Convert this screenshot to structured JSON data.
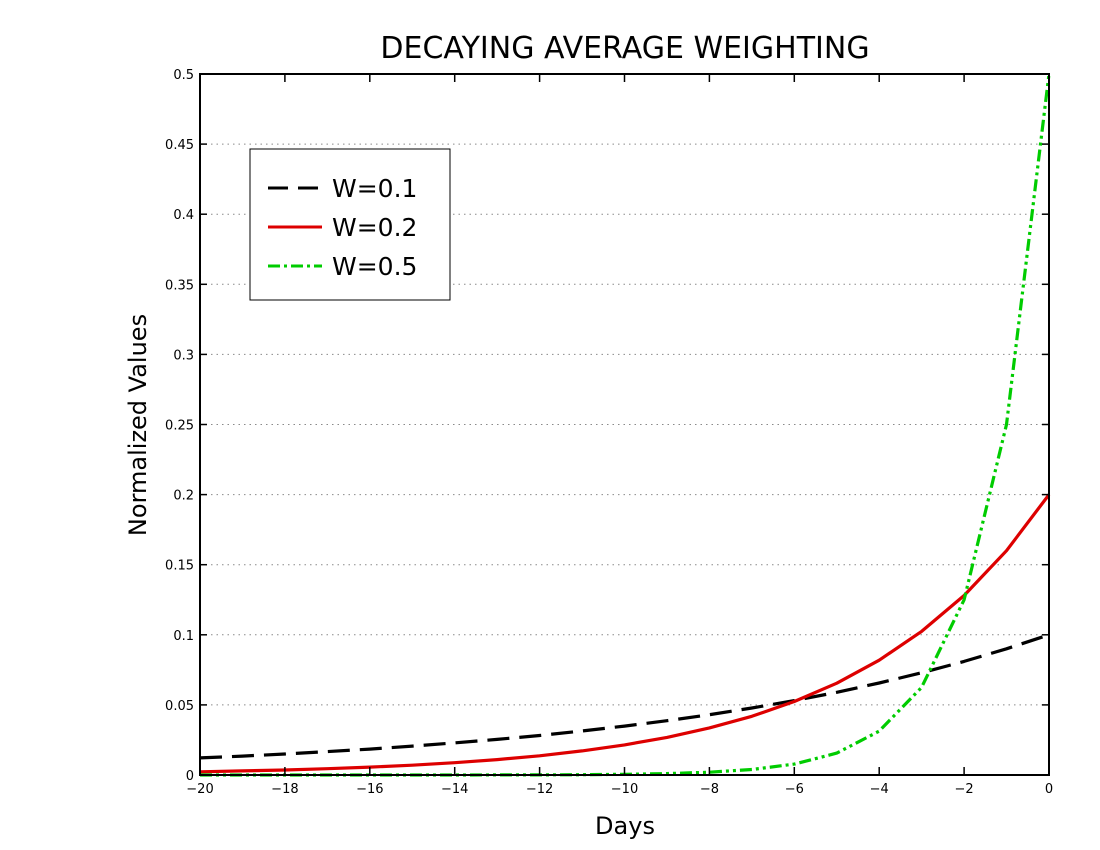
{
  "chart_data": {
    "type": "line",
    "title": "DECAYING AVERAGE WEIGHTING",
    "xlabel": "Days",
    "ylabel": "Normalized Values",
    "xlim": [
      -20,
      0
    ],
    "ylim": [
      0,
      0.5
    ],
    "x_ticks": [
      -20,
      -18,
      -16,
      -14,
      -12,
      -10,
      -8,
      -6,
      -4,
      -2,
      0
    ],
    "x_tick_labels": [
      "−20",
      "−18",
      "−16",
      "−14",
      "−12",
      "−10",
      "−8",
      "−6",
      "−4",
      "−2",
      "0"
    ],
    "y_ticks": [
      0,
      0.05,
      0.1,
      0.15,
      0.2,
      0.25,
      0.3,
      0.35,
      0.4,
      0.45,
      0.5
    ],
    "y_tick_labels": [
      "0",
      "0.05",
      "0.1",
      "0.15",
      "0.2",
      "0.25",
      "0.3",
      "0.35",
      "0.4",
      "0.45",
      "0.5"
    ],
    "grid": "horizontal-dotted",
    "legend_position": "top-left",
    "x": [
      -20,
      -19,
      -18,
      -17,
      -16,
      -15,
      -14,
      -13,
      -12,
      -11,
      -10,
      -9,
      -8,
      -7,
      -6,
      -5,
      -4,
      -3,
      -2,
      -1,
      0
    ],
    "series": [
      {
        "name": "W=0.1",
        "color": "#000000",
        "style": "dashed",
        "values": [
          0.0122,
          0.0135,
          0.015,
          0.0167,
          0.0185,
          0.0206,
          0.0229,
          0.0254,
          0.0282,
          0.0314,
          0.0349,
          0.0387,
          0.043,
          0.0478,
          0.0531,
          0.059,
          0.0656,
          0.0729,
          0.081,
          0.09,
          0.1
        ]
      },
      {
        "name": "W=0.2",
        "color": "#dd0000",
        "style": "solid",
        "values": [
          0.0023,
          0.0029,
          0.0036,
          0.0045,
          0.0056,
          0.007,
          0.0088,
          0.011,
          0.0137,
          0.0172,
          0.0215,
          0.0268,
          0.0336,
          0.0419,
          0.0524,
          0.0655,
          0.0819,
          0.1024,
          0.128,
          0.16,
          0.2
        ]
      },
      {
        "name": "W=0.5",
        "color": "#00cc00",
        "style": "dash-dot",
        "values": [
          0.0,
          0.0,
          0.0,
          0.0,
          0.0,
          0.0,
          0.0,
          0.0001,
          0.0001,
          0.0002,
          0.0005,
          0.001,
          0.002,
          0.0039,
          0.0078,
          0.0156,
          0.0313,
          0.0625,
          0.125,
          0.25,
          0.5
        ]
      }
    ]
  }
}
